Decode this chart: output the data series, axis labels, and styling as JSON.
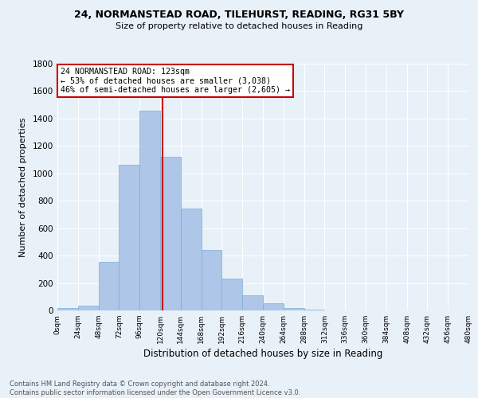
{
  "title1": "24, NORMANSTEAD ROAD, TILEHURST, READING, RG31 5BY",
  "title2": "Size of property relative to detached houses in Reading",
  "xlabel": "Distribution of detached houses by size in Reading",
  "ylabel": "Number of detached properties",
  "bin_edges": [
    0,
    24,
    48,
    72,
    96,
    120,
    144,
    168,
    192,
    216,
    240,
    264,
    288,
    312,
    336,
    360,
    384,
    408,
    432,
    456,
    480
  ],
  "bar_heights": [
    15,
    35,
    355,
    1060,
    1460,
    1120,
    745,
    440,
    230,
    110,
    55,
    20,
    5,
    0,
    0,
    0,
    0,
    0,
    0,
    0
  ],
  "bar_color": "#aec6e8",
  "bar_edge_color": "#7bafd4",
  "property_size": 123,
  "vline_color": "#cc0000",
  "annotation_line1": "24 NORMANSTEAD ROAD: 123sqm",
  "annotation_line2": "← 53% of detached houses are smaller (3,038)",
  "annotation_line3": "46% of semi-detached houses are larger (2,605) →",
  "annotation_box_color": "#ffffff",
  "annotation_box_edge": "#cc0000",
  "ylim": [
    0,
    1800
  ],
  "xlim": [
    0,
    480
  ],
  "xtick_labels": [
    "0sqm",
    "24sqm",
    "48sqm",
    "72sqm",
    "96sqm",
    "120sqm",
    "144sqm",
    "168sqm",
    "192sqm",
    "216sqm",
    "240sqm",
    "264sqm",
    "288sqm",
    "312sqm",
    "336sqm",
    "360sqm",
    "384sqm",
    "408sqm",
    "432sqm",
    "456sqm",
    "480sqm"
  ],
  "ytick_labels": [
    "0",
    "200",
    "400",
    "600",
    "800",
    "1000",
    "1200",
    "1400",
    "1600",
    "1800"
  ],
  "ytick_values": [
    0,
    200,
    400,
    600,
    800,
    1000,
    1200,
    1400,
    1600,
    1800
  ],
  "footer1": "Contains HM Land Registry data © Crown copyright and database right 2024.",
  "footer2": "Contains public sector information licensed under the Open Government Licence v3.0.",
  "background_color": "#e8f0f8",
  "plot_bg_color": "#e8f0f8",
  "grid_color": "#ffffff"
}
